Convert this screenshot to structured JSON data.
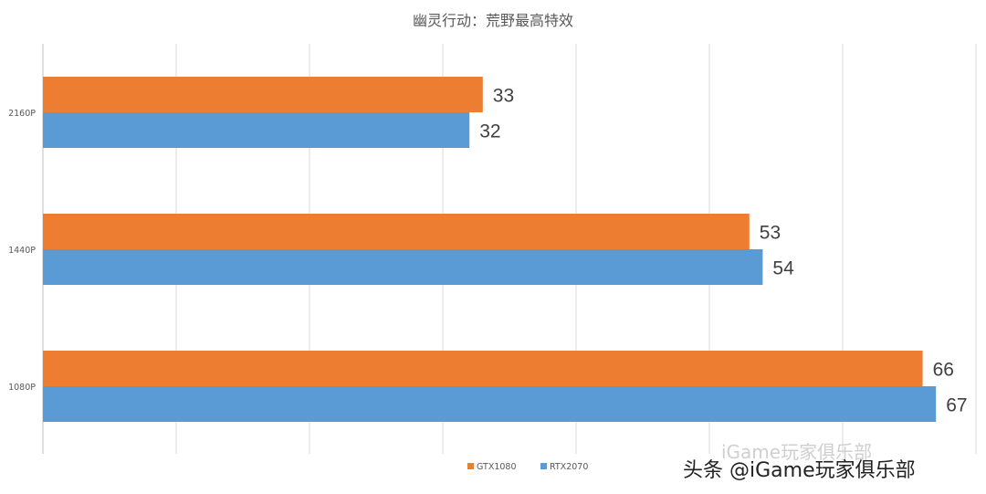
{
  "chart_data": {
    "type": "bar",
    "orientation": "horizontal",
    "title": "幽灵行动：荒野最高特效",
    "categories": [
      "2160P",
      "1440P",
      "1080P"
    ],
    "series": [
      {
        "name": "GTX1080",
        "values": [
          33,
          53,
          66
        ],
        "color": "#ED7D31"
      },
      {
        "name": "RTX2070",
        "values": [
          32,
          54,
          67
        ],
        "color": "#5B9BD5"
      }
    ],
    "xlim": [
      0,
      70
    ],
    "grid": true,
    "legend": "bottom"
  },
  "watermark": {
    "text": "头条 @iGame玩家俱乐部",
    "ghost_text": "iGame玩家俱乐部"
  }
}
